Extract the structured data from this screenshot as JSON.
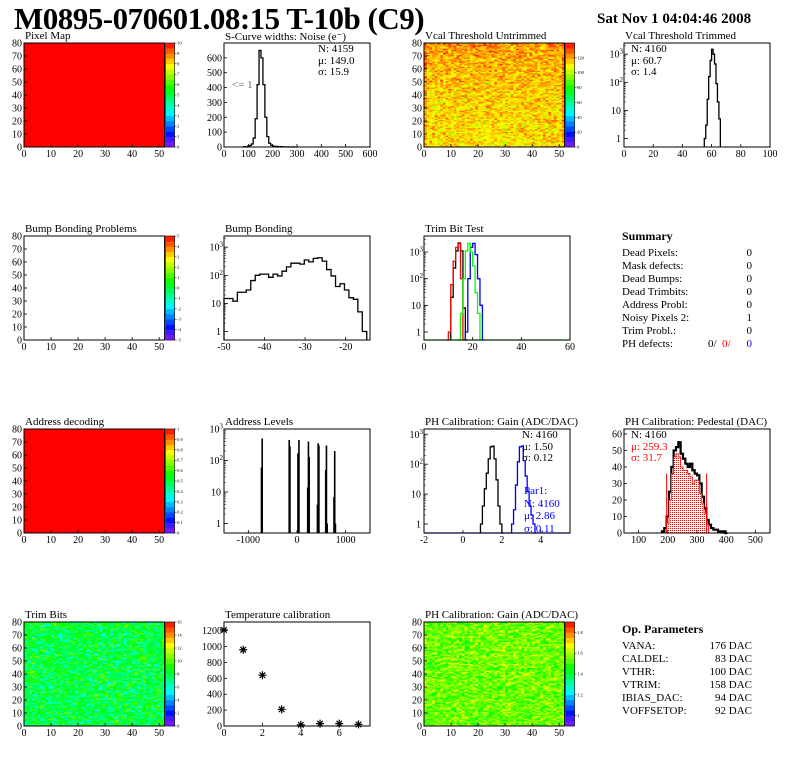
{
  "header": {
    "title": "M0895-070601.08:15 T-10b (C9)",
    "date": "Sat Nov  1 04:04:46 2008"
  },
  "colors": {
    "red": "#ff0000",
    "blue": "#0000ff",
    "green": "#00ff00",
    "black": "#000000",
    "gray": "#666666"
  },
  "chart_data": [
    {
      "id": "pixel-map",
      "type": "heatmap",
      "title": "Pixel Map",
      "nx": 52,
      "ny": 80,
      "xlim": [
        0,
        54
      ],
      "ylim": [
        0,
        80
      ],
      "xticks": [
        0,
        10,
        20,
        30,
        40,
        50
      ],
      "yticks": [
        0,
        10,
        20,
        30,
        40,
        50,
        60,
        70,
        80
      ],
      "zlim": [
        0,
        10
      ],
      "zticks": [
        "0",
        "1",
        "2",
        "3",
        "4",
        "5",
        "6",
        "7",
        "8",
        "9",
        "10"
      ],
      "fill": {
        "mode": "uniform",
        "value": 10
      }
    },
    {
      "id": "scurve-noise",
      "type": "hist",
      "title": "S-Curve widths: Noise (e⁻)",
      "xlim": [
        0,
        600
      ],
      "ylim": [
        0,
        700
      ],
      "xticks": [
        0,
        100,
        200,
        300,
        400,
        500,
        600
      ],
      "yticks": [
        0,
        100,
        200,
        300,
        400,
        500,
        600
      ],
      "stats": [
        "N: 4159",
        "μ: 149.0",
        "σ: 15.9"
      ],
      "note": "<= 1",
      "series": [
        {
          "color": "#000000",
          "x0": 80,
          "w": 8,
          "values": [
            2,
            0,
            5,
            10,
            20,
            60,
            190,
            420,
            650,
            600,
            420,
            200,
            70,
            25,
            12,
            6,
            4,
            3,
            0,
            2,
            1,
            0,
            1,
            0,
            0,
            1,
            0,
            0
          ]
        }
      ]
    },
    {
      "id": "vcal-untrimmed",
      "type": "heatmap",
      "title": "Vcal Threshold Untrimmed",
      "nx": 52,
      "ny": 80,
      "xlim": [
        0,
        54
      ],
      "ylim": [
        0,
        80
      ],
      "xticks": [
        0,
        10,
        20,
        30,
        40,
        50
      ],
      "yticks": [
        0,
        10,
        20,
        30,
        40,
        50,
        60,
        70,
        80
      ],
      "zlim": [
        0,
        140
      ],
      "zticks": [
        "0",
        "20",
        "40",
        "60",
        "80",
        "100",
        "120"
      ],
      "fill": {
        "mode": "random",
        "mean": 112,
        "spread": 10,
        "topboost": 10
      }
    },
    {
      "id": "vcal-trimmed",
      "type": "hist",
      "title": "Vcal Threshold Trimmed",
      "log": true,
      "xlim": [
        0,
        100
      ],
      "ylim": [
        0.5,
        2500
      ],
      "xticks": [
        0,
        20,
        40,
        60,
        80,
        100
      ],
      "stats": [
        "N: 4160",
        "μ: 60.7",
        "σ:  1.4"
      ],
      "series": [
        {
          "color": "#000000",
          "x0": 55,
          "w": 1,
          "values": [
            1,
            3,
            25,
            160,
            600,
            1500,
            1000,
            450,
            90,
            20,
            5
          ]
        }
      ]
    },
    {
      "id": "bump-bonding-problems",
      "type": "heatmap",
      "title": "Bump Bonding Problems",
      "nx": 52,
      "ny": 80,
      "xlim": [
        0,
        54
      ],
      "ylim": [
        0,
        80
      ],
      "xticks": [
        0,
        10,
        20,
        30,
        40,
        50
      ],
      "yticks": [
        0,
        10,
        20,
        30,
        40,
        50,
        60,
        70,
        80
      ],
      "zlim": [
        -5,
        5
      ],
      "zticks": [
        "-5",
        "-4",
        "-3",
        "-2",
        "-1",
        "0",
        "1",
        "2",
        "3",
        "4",
        "5"
      ],
      "fill": {
        "mode": "empty"
      }
    },
    {
      "id": "bump-bonding",
      "type": "hist",
      "title": "Bump Bonding",
      "log": true,
      "xlim": [
        -50,
        -14
      ],
      "ylim": [
        0.5,
        2500
      ],
      "xticks": [
        -50,
        -40,
        -30,
        -20
      ],
      "series": [
        {
          "color": "#000000",
          "x0": -50,
          "w": 1.1,
          "values": [
            15,
            15,
            12,
            25,
            25,
            30,
            65,
            100,
            110,
            110,
            85,
            110,
            95,
            140,
            200,
            270,
            270,
            250,
            350,
            300,
            400,
            420,
            320,
            160,
            95,
            40,
            50,
            30,
            16,
            14,
            5,
            1
          ]
        }
      ]
    },
    {
      "id": "trim-bit-test",
      "type": "hist",
      "title": "Trim Bit Test",
      "log": true,
      "xlim": [
        0,
        60
      ],
      "ylim": [
        0.5,
        4000
      ],
      "xticks": [
        0,
        20,
        40,
        60
      ],
      "series": [
        {
          "color": "#000000",
          "x0": 10,
          "w": 1,
          "values": [
            0,
            20,
            250,
            1100,
            2200,
            1100,
            8,
            0
          ]
        },
        {
          "color": "#ff0000",
          "x0": 9,
          "w": 1,
          "values": [
            0,
            1,
            60,
            450,
            1500,
            2100,
            100,
            0
          ]
        },
        {
          "color": "#0000ff",
          "x0": 16,
          "w": 1,
          "values": [
            0,
            1,
            100,
            1500,
            2100,
            800,
            100,
            10,
            0
          ]
        },
        {
          "color": "#00ff00",
          "x0": 14,
          "w": 1,
          "values": [
            0,
            5,
            100,
            1100,
            2100,
            1000,
            300,
            30,
            5,
            0
          ]
        }
      ]
    },
    {
      "id": "summary",
      "type": "text",
      "title": "Summary",
      "rows": [
        {
          "label": "Dead Pixels:",
          "value": "0"
        },
        {
          "label": "Mask defects:",
          "value": "0"
        },
        {
          "label": "Dead Bumps:",
          "value": "0"
        },
        {
          "label": "Dead Trimbits:",
          "value": "0"
        },
        {
          "label": "Address Probl:",
          "value": "0"
        },
        {
          "label": "Noisy Pixels 2:",
          "value": "1"
        },
        {
          "label": "Trim Probl.:",
          "value": "0"
        }
      ],
      "ph_defects": {
        "label": "PH defects:",
        "v1": "0/",
        "v2": "0/",
        "v3": "0"
      }
    },
    {
      "id": "address-decoding",
      "type": "heatmap",
      "title": "Address decoding",
      "nx": 52,
      "ny": 80,
      "xlim": [
        0,
        54
      ],
      "ylim": [
        0,
        80
      ],
      "xticks": [
        0,
        10,
        20,
        30,
        40,
        50
      ],
      "yticks": [
        0,
        10,
        20,
        30,
        40,
        50,
        60,
        70,
        80
      ],
      "zlim": [
        0,
        1
      ],
      "zticks": [
        "0",
        "0.1",
        "0.2",
        "0.3",
        "0.4",
        "0.5",
        "0.6",
        "0.7",
        "0.8",
        "0.9",
        "1"
      ],
      "fill": {
        "mode": "uniform",
        "value": 1
      }
    },
    {
      "id": "address-levels",
      "type": "bars",
      "title": "Address Levels",
      "log": true,
      "xlim": [
        -1500,
        1500
      ],
      "ylim": [
        0.5,
        1000
      ],
      "xticks": [
        -1000,
        0,
        1000
      ],
      "bars": [
        [
          -730,
          60
        ],
        [
          -715,
          500
        ],
        [
          -160,
          450
        ],
        [
          -145,
          280
        ],
        [
          20,
          170
        ],
        [
          40,
          450
        ],
        [
          220,
          14
        ],
        [
          235,
          400
        ],
        [
          250,
          130
        ],
        [
          420,
          4
        ],
        [
          435,
          350
        ],
        [
          450,
          300
        ],
        [
          590,
          50
        ],
        [
          605,
          300
        ],
        [
          620,
          1
        ],
        [
          760,
          7
        ],
        [
          775,
          200
        ],
        [
          790,
          1
        ]
      ]
    },
    {
      "id": "ph-gain",
      "type": "hist",
      "title": "PH Calibration: Gain (ADC/DAC)",
      "log": true,
      "xlim": [
        -2,
        5.5
      ],
      "ylim": [
        0.5,
        1500
      ],
      "xticks": [
        -2,
        0,
        2,
        4
      ],
      "stats": [
        "N: 4160",
        "μ: 1.50",
        "σ: 0.12"
      ],
      "stats2": [
        "Par1:",
        "N: 4160",
        "μ: 2.86",
        "σ: 0.11"
      ],
      "series": [
        {
          "color": "#000000",
          "x0": 0.9,
          "w": 0.1,
          "values": [
            1,
            4,
            15,
            50,
            150,
            380,
            400,
            150,
            30,
            4,
            1,
            0
          ]
        },
        {
          "color": "#0000ff",
          "x0": 2.5,
          "w": 0.1,
          "values": [
            1,
            3,
            20,
            120,
            380,
            400,
            130,
            40,
            12,
            4,
            2,
            1,
            0
          ]
        }
      ]
    },
    {
      "id": "ph-pedestal",
      "type": "hist",
      "title": "PH Calibration: Pedestal (DAC)",
      "xlim": [
        50,
        550
      ],
      "ylim": [
        0,
        63
      ],
      "xticks": [
        100,
        200,
        300,
        400,
        500
      ],
      "yticks": [
        0,
        10,
        20,
        30,
        40,
        50,
        60
      ],
      "stats": [
        "N: 4160"
      ],
      "stats_red": [
        "μ: 259.3",
        "σ: 31.7"
      ],
      "series": [
        {
          "color": "#000000",
          "x0": 180,
          "w": 8,
          "values": [
            1,
            3,
            10,
            25,
            40,
            50,
            52,
            55,
            48,
            45,
            42,
            40,
            42,
            38,
            36,
            35,
            30,
            22,
            15,
            8,
            5,
            3,
            2,
            2,
            1,
            1,
            1,
            0
          ]
        },
        {
          "color": "#ff0000",
          "hatched": true,
          "x0": 196,
          "w": 8,
          "values": [
            6,
            20,
            36,
            46,
            48,
            46,
            40,
            38,
            38,
            36,
            34,
            30,
            32,
            32,
            24,
            18,
            12,
            5
          ]
        }
      ],
      "cutlines": [
        196,
        333
      ],
      "cutheight": 36
    },
    {
      "id": "trim-bits",
      "type": "heatmap",
      "title": "Trim Bits",
      "nx": 52,
      "ny": 80,
      "xlim": [
        0,
        54
      ],
      "ylim": [
        0,
        80
      ],
      "xticks": [
        0,
        10,
        20,
        30,
        40,
        50
      ],
      "yticks": [
        0,
        10,
        20,
        30,
        40,
        50,
        60,
        70,
        80
      ],
      "zlim": [
        0,
        16
      ],
      "zticks": [
        "0",
        "2",
        "4",
        "6",
        "8",
        "10",
        "12",
        "14",
        "16"
      ],
      "fill": {
        "mode": "random",
        "mean": 8,
        "spread": 1.8,
        "topboost": 0
      }
    },
    {
      "id": "temperature-calibration",
      "type": "scatter",
      "title": "Temperature calibration",
      "xlim": [
        0,
        7.6
      ],
      "ylim": [
        0,
        1310
      ],
      "xticks": [
        0,
        2,
        4,
        6
      ],
      "yticks": [
        0,
        200,
        400,
        600,
        800,
        1000,
        1200
      ],
      "x": [
        0,
        1,
        2,
        3,
        4,
        5,
        6,
        7
      ],
      "y": [
        1210,
        960,
        640,
        210,
        15,
        30,
        30,
        20
      ]
    },
    {
      "id": "ph-gain-map",
      "type": "heatmap",
      "title": "PH Calibration: Gain (ADC/DAC)",
      "nx": 52,
      "ny": 80,
      "xlim": [
        0,
        54
      ],
      "ylim": [
        0,
        80
      ],
      "xticks": [
        0,
        10,
        20,
        30,
        40,
        50
      ],
      "yticks": [
        0,
        10,
        20,
        30,
        40,
        50,
        60,
        70,
        80
      ],
      "zlim": [
        0.9,
        1.9
      ],
      "zticks": [
        "1",
        "1.2",
        "1.4",
        "1.6",
        "1.8"
      ],
      "zticknum": [
        1,
        1.2,
        1.4,
        1.6,
        1.8
      ],
      "fill": {
        "mode": "random",
        "mean": 1.55,
        "spread": 0.09,
        "topboost": 0
      }
    },
    {
      "id": "op-parameters",
      "type": "text",
      "title": "Op. Parameters",
      "rows": [
        {
          "label": "VANA:",
          "value": "176 DAC"
        },
        {
          "label": "CALDEL:",
          "value": "83 DAC"
        },
        {
          "label": "VTHR:",
          "value": "100 DAC"
        },
        {
          "label": "VTRIM:",
          "value": "158 DAC"
        },
        {
          "label": "IBIAS_DAC:",
          "value": "94 DAC"
        },
        {
          "label": "VOFFSETOP:",
          "value": "92 DAC"
        }
      ]
    }
  ]
}
